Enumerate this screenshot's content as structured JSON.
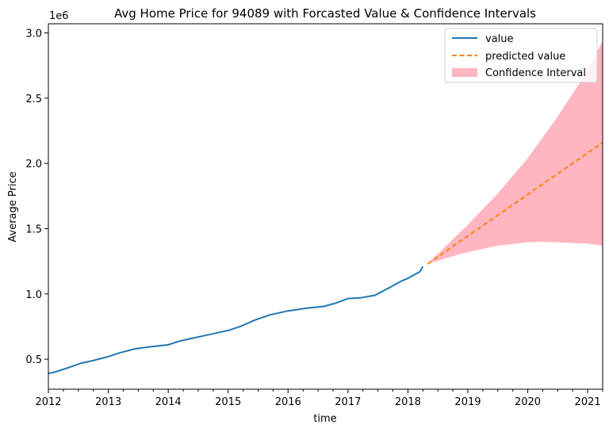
{
  "chart_data": {
    "type": "line",
    "title": "Avg Home Price for 94089 with Forcasted Value & Confidence Intervals",
    "xlabel": "time",
    "ylabel": "Average Price",
    "y_scale_label": "1e6",
    "x_range": [
      2012.0,
      2021.25
    ],
    "y_range": [
      0.27,
      3.07
    ],
    "x_ticks": [
      "2012",
      "2013",
      "2014",
      "2015",
      "2016",
      "2017",
      "2018",
      "2019",
      "2020",
      "2021"
    ],
    "y_ticks": [
      "0.5",
      "1.0",
      "1.5",
      "2.0",
      "2.5",
      "3.0"
    ],
    "y_tick_values": [
      0.5,
      1.0,
      1.5,
      2.0,
      2.5,
      3.0
    ],
    "grid": false,
    "legend_position": "top-right",
    "legend": [
      {
        "label": "value",
        "style": "solid",
        "color": "#1f77b4"
      },
      {
        "label": "predicted value",
        "style": "dashed",
        "color": "#ff7f0e"
      },
      {
        "label": "Confidence Interval",
        "style": "fill",
        "color": "#ffb6c1"
      }
    ],
    "series": [
      {
        "name": "value",
        "color": "#1f77b4",
        "x": [
          2012.0,
          2012.1,
          2012.3,
          2012.55,
          2012.75,
          2013.0,
          2013.2,
          2013.45,
          2013.7,
          2014.0,
          2014.2,
          2014.5,
          2014.8,
          2015.0,
          2015.2,
          2015.45,
          2015.7,
          2016.0,
          2016.3,
          2016.6,
          2016.8,
          2017.0,
          2017.2,
          2017.45,
          2017.7,
          2017.9,
          2018.0,
          2018.2,
          2018.25
        ],
        "y": [
          0.39,
          0.4,
          0.43,
          0.47,
          0.49,
          0.52,
          0.55,
          0.58,
          0.595,
          0.61,
          0.64,
          0.67,
          0.7,
          0.72,
          0.75,
          0.8,
          0.84,
          0.87,
          0.89,
          0.905,
          0.93,
          0.965,
          0.97,
          0.99,
          1.05,
          1.1,
          1.12,
          1.17,
          1.21
        ]
      },
      {
        "name": "predicted value",
        "color": "#ff7f0e",
        "x": [
          2018.33,
          2021.25
        ],
        "y": [
          1.23,
          2.16
        ]
      }
    ],
    "confidence_interval": {
      "name": "Confidence Interval",
      "color": "#ffb6c1",
      "x": [
        2018.33,
        2018.75,
        2019.0,
        2019.5,
        2020.0,
        2020.25,
        2020.5,
        2021.0,
        2021.25
      ],
      "lower": [
        1.23,
        1.29,
        1.32,
        1.37,
        1.395,
        1.4,
        1.395,
        1.385,
        1.37
      ],
      "upper": [
        1.23,
        1.42,
        1.53,
        1.77,
        2.04,
        2.2,
        2.36,
        2.71,
        2.94
      ]
    }
  }
}
